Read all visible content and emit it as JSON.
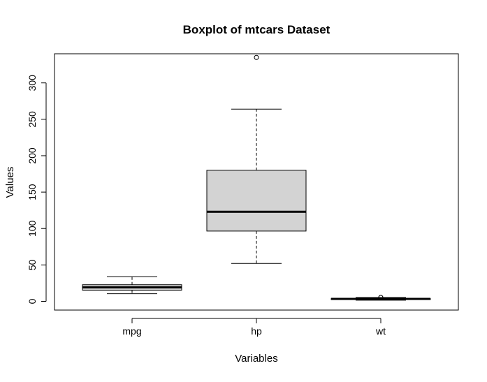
{
  "chart_data": {
    "type": "boxplot",
    "title": "Boxplot of mtcars Dataset",
    "xlabel": "Variables",
    "ylabel": "Values",
    "ylim": [
      -12,
      340
    ],
    "yticks": [
      0,
      50,
      100,
      150,
      200,
      250,
      300
    ],
    "grid": false,
    "legend": "none",
    "box_fill": "#d3d3d3",
    "categories": [
      "mpg",
      "hp",
      "wt"
    ],
    "boxes": [
      {
        "name": "mpg",
        "whisker_low": 10.4,
        "q1": 15.35,
        "median": 19.2,
        "q3": 22.8,
        "whisker_high": 33.9,
        "outliers": []
      },
      {
        "name": "hp",
        "whisker_low": 52,
        "q1": 96.5,
        "median": 123,
        "q3": 180,
        "whisker_high": 264,
        "outliers": [
          335
        ]
      },
      {
        "name": "wt",
        "whisker_low": 1.513,
        "q1": 2.581,
        "median": 3.325,
        "q3": 3.61,
        "whisker_high": 5.25,
        "outliers": [
          5.345,
          5.424
        ]
      }
    ]
  }
}
